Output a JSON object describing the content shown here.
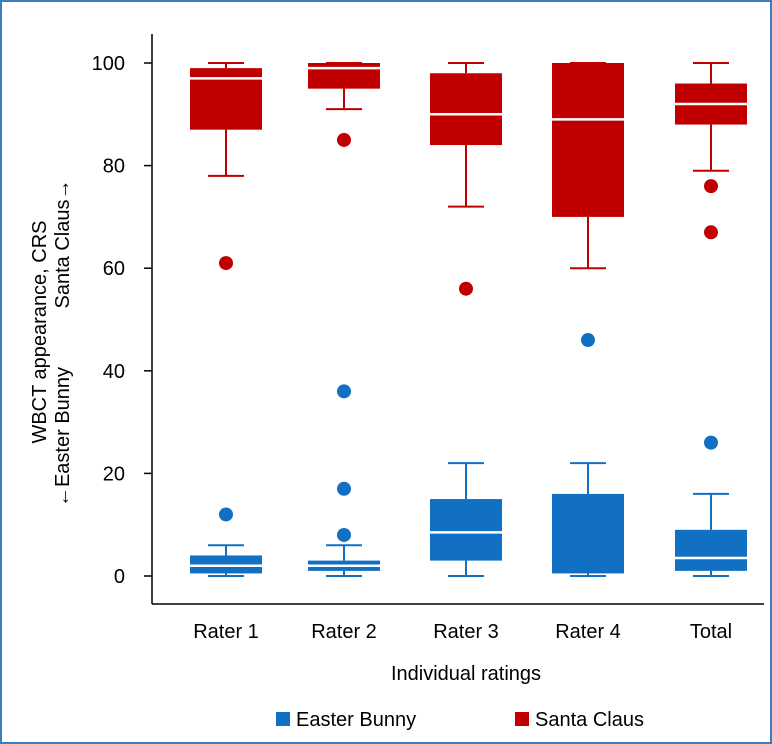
{
  "chart_data": {
    "type": "box",
    "xlabel": "Individual ratings",
    "ylabel_lines": [
      "WBCT appearance, CRS",
      "←Easter Bunny",
      "Santa Claus→"
    ],
    "ylim": [
      0,
      100
    ],
    "yticks": [
      "0",
      "20",
      "40",
      "60",
      "80",
      "100"
    ],
    "categories": [
      "Rater 1",
      "Rater 2",
      "Rater 3",
      "Rater 4",
      "Total"
    ],
    "grid": false,
    "legend_position": "bottom",
    "series": [
      {
        "name": "Easter Bunny",
        "color": "#1170c4",
        "boxes": [
          {
            "whisker_low": 0,
            "q1": 0.5,
            "median": 2,
            "q3": 4,
            "whisker_high": 6,
            "outliers": [
              12
            ]
          },
          {
            "whisker_low": 0,
            "q1": 1,
            "median": 2,
            "q3": 3,
            "whisker_high": 6,
            "outliers": [
              8,
              17,
              36
            ]
          },
          {
            "whisker_low": 0,
            "q1": 3,
            "median": 8.5,
            "q3": 15,
            "whisker_high": 22,
            "outliers": []
          },
          {
            "whisker_low": 0,
            "q1": 0.5,
            "median": 0.5,
            "q3": 16,
            "whisker_high": 22,
            "outliers": [
              46
            ]
          },
          {
            "whisker_low": 0,
            "q1": 1,
            "median": 3.5,
            "q3": 9,
            "whisker_high": 16,
            "outliers": [
              26
            ]
          }
        ]
      },
      {
        "name": "Santa Claus",
        "color": "#c00000",
        "boxes": [
          {
            "whisker_low": 78,
            "q1": 87,
            "median": 97,
            "q3": 99,
            "whisker_high": 100,
            "outliers": [
              61
            ]
          },
          {
            "whisker_low": 91,
            "q1": 95,
            "median": 99,
            "q3": 100,
            "whisker_high": 100,
            "outliers": [
              85
            ]
          },
          {
            "whisker_low": 72,
            "q1": 84,
            "median": 90,
            "q3": 98,
            "whisker_high": 100,
            "outliers": [
              56
            ]
          },
          {
            "whisker_low": 60,
            "q1": 70,
            "median": 89,
            "q3": 100,
            "whisker_high": 100,
            "outliers": []
          },
          {
            "whisker_low": 79,
            "q1": 88,
            "median": 92,
            "q3": 96,
            "whisker_high": 100,
            "outliers": [
              67,
              76
            ]
          }
        ]
      }
    ]
  }
}
